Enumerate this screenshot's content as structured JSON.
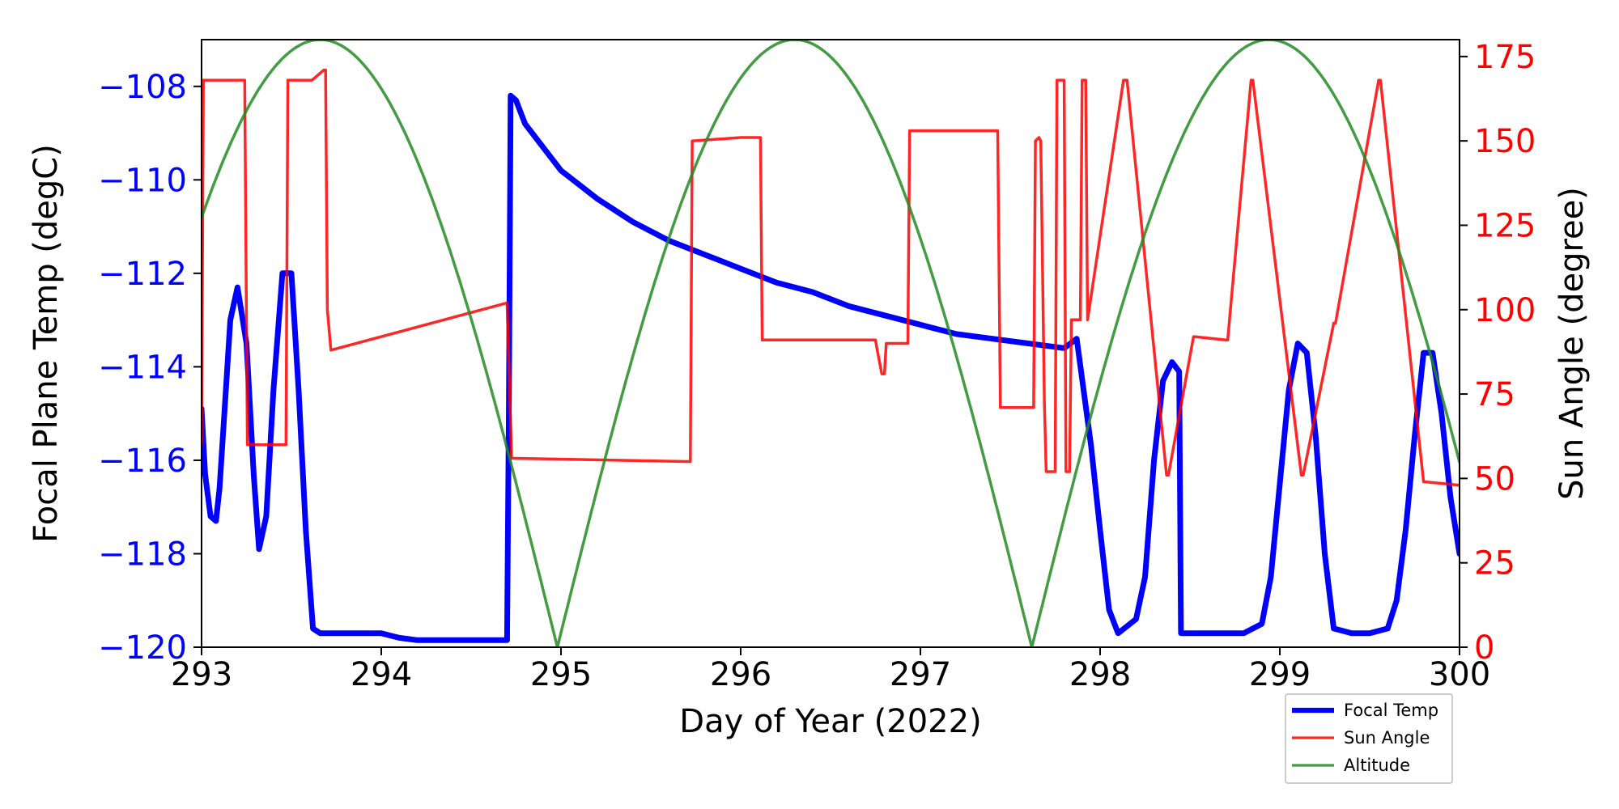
{
  "chart_data": {
    "type": "line",
    "xlabel": "Day of Year (2022)",
    "ylabel_left": "Focal Plane Temp (degC)",
    "ylabel_right": "Sun Angle (degree)",
    "xlim": [
      293,
      300
    ],
    "ylim_left": [
      -120,
      -107
    ],
    "ylim_right": [
      0,
      180
    ],
    "x_ticks": [
      "293",
      "294",
      "295",
      "296",
      "297",
      "298",
      "299",
      "300"
    ],
    "y_left_ticks": [
      "-108",
      "-110",
      "-112",
      "-114",
      "-116",
      "-118",
      "-120"
    ],
    "y_right_ticks": [
      "0",
      "25",
      "50",
      "75",
      "100",
      "125",
      "150",
      "175"
    ],
    "grid": false,
    "legend_placement": "lower-right",
    "colors": {
      "left_axis": "#0000ff",
      "right_axis": "#ff0000"
    },
    "series": [
      {
        "name": "Focal Temp",
        "axis": "left",
        "color": "#0000ff",
        "x": [
          293.0,
          293.02,
          293.05,
          293.08,
          293.1,
          293.13,
          293.16,
          293.2,
          293.25,
          293.29,
          293.32,
          293.36,
          293.4,
          293.45,
          293.5,
          293.54,
          293.58,
          293.62,
          293.66,
          293.7,
          293.74,
          293.77,
          293.8,
          293.84,
          293.88,
          293.92,
          293.96,
          294.0,
          294.05,
          294.1,
          294.2,
          294.3,
          294.4,
          294.5,
          294.6,
          294.7,
          294.71,
          294.72,
          294.75,
          294.8,
          294.9,
          295.0,
          295.2,
          295.4,
          295.6,
          295.8,
          296.0,
          296.2,
          296.4,
          296.6,
          296.8,
          297.0,
          297.2,
          297.4,
          297.6,
          297.8,
          297.87,
          297.95,
          298.0,
          298.05,
          298.1,
          298.2,
          298.25,
          298.3,
          298.35,
          298.4,
          298.44,
          298.45,
          298.46,
          298.5,
          298.6,
          298.7,
          298.8,
          298.9,
          298.95,
          299.0,
          299.05,
          299.1,
          299.15,
          299.2,
          299.25,
          299.3,
          299.4,
          299.5,
          299.6,
          299.65,
          299.7,
          299.75,
          299.8,
          299.85,
          299.9,
          299.95,
          300.0
        ],
        "y": [
          -114.9,
          -116.3,
          -117.2,
          -117.3,
          -116.6,
          -114.8,
          -113.0,
          -112.3,
          -113.5,
          -116.3,
          -117.9,
          -117.2,
          -114.5,
          -112.0,
          -112.0,
          -114.5,
          -117.5,
          -119.6,
          -119.7,
          -119.7,
          -119.7,
          -119.7,
          -119.7,
          -119.7,
          -119.7,
          -119.7,
          -119.7,
          -119.7,
          -119.75,
          -119.8,
          -119.85,
          -119.85,
          -119.85,
          -119.85,
          -119.85,
          -119.85,
          -115.0,
          -108.2,
          -108.3,
          -108.8,
          -109.3,
          -109.8,
          -110.4,
          -110.9,
          -111.3,
          -111.6,
          -111.9,
          -112.2,
          -112.4,
          -112.7,
          -112.9,
          -113.1,
          -113.3,
          -113.4,
          -113.5,
          -113.6,
          -113.4,
          -115.7,
          -117.5,
          -119.2,
          -119.7,
          -119.4,
          -118.5,
          -116.0,
          -114.3,
          -113.9,
          -114.1,
          -119.7,
          -119.7,
          -119.7,
          -119.7,
          -119.7,
          -119.7,
          -119.5,
          -118.5,
          -116.5,
          -114.5,
          -113.5,
          -113.7,
          -115.5,
          -118.0,
          -119.6,
          -119.7,
          -119.7,
          -119.6,
          -119.0,
          -117.5,
          -115.5,
          -113.7,
          -113.7,
          -115.0,
          -116.8,
          -118.0
        ]
      },
      {
        "name": "Sun Angle",
        "axis": "right",
        "color": "#ff0000",
        "x": [
          293.0,
          293.01,
          293.06,
          293.24,
          293.255,
          293.47,
          293.48,
          293.6,
          293.615,
          293.68,
          293.69,
          293.7,
          293.72,
          294.7,
          294.725,
          295.7,
          295.72,
          295.73,
          296.0,
          296.11,
          296.12,
          296.75,
          296.76,
          296.785,
          296.8,
          296.81,
          296.93,
          296.94,
          297.43,
          297.445,
          297.63,
          297.64,
          297.66,
          297.67,
          297.69,
          297.7,
          297.75,
          297.76,
          297.8,
          297.81,
          297.83,
          297.84,
          297.89,
          297.9,
          297.92,
          297.93,
          298.13,
          298.15,
          298.37,
          298.38,
          298.52,
          298.53,
          298.7,
          298.71,
          298.84,
          298.85,
          299.12,
          299.13,
          299.3,
          299.31,
          299.55,
          299.56,
          299.8,
          299.81,
          300.0
        ],
        "x_note": "",
        "y": [
          60,
          168,
          168,
          168,
          60,
          60,
          168,
          168,
          168,
          171,
          171,
          100,
          88,
          102,
          56,
          55,
          55,
          150,
          151,
          151,
          91,
          91,
          88,
          81,
          81,
          90,
          90,
          153,
          153,
          71,
          71,
          150,
          151,
          150,
          72,
          52,
          52,
          168,
          168,
          52,
          52,
          97,
          97,
          168,
          168,
          97,
          168,
          168,
          51,
          51,
          92,
          92,
          91,
          91,
          168,
          168,
          51,
          51,
          96,
          96,
          168,
          168,
          49,
          49,
          48
        ],
        "values_note": ""
      },
      {
        "name": "Altitude",
        "axis": "right",
        "color": "#228b22",
        "x": [],
        "y": []
      }
    ]
  }
}
